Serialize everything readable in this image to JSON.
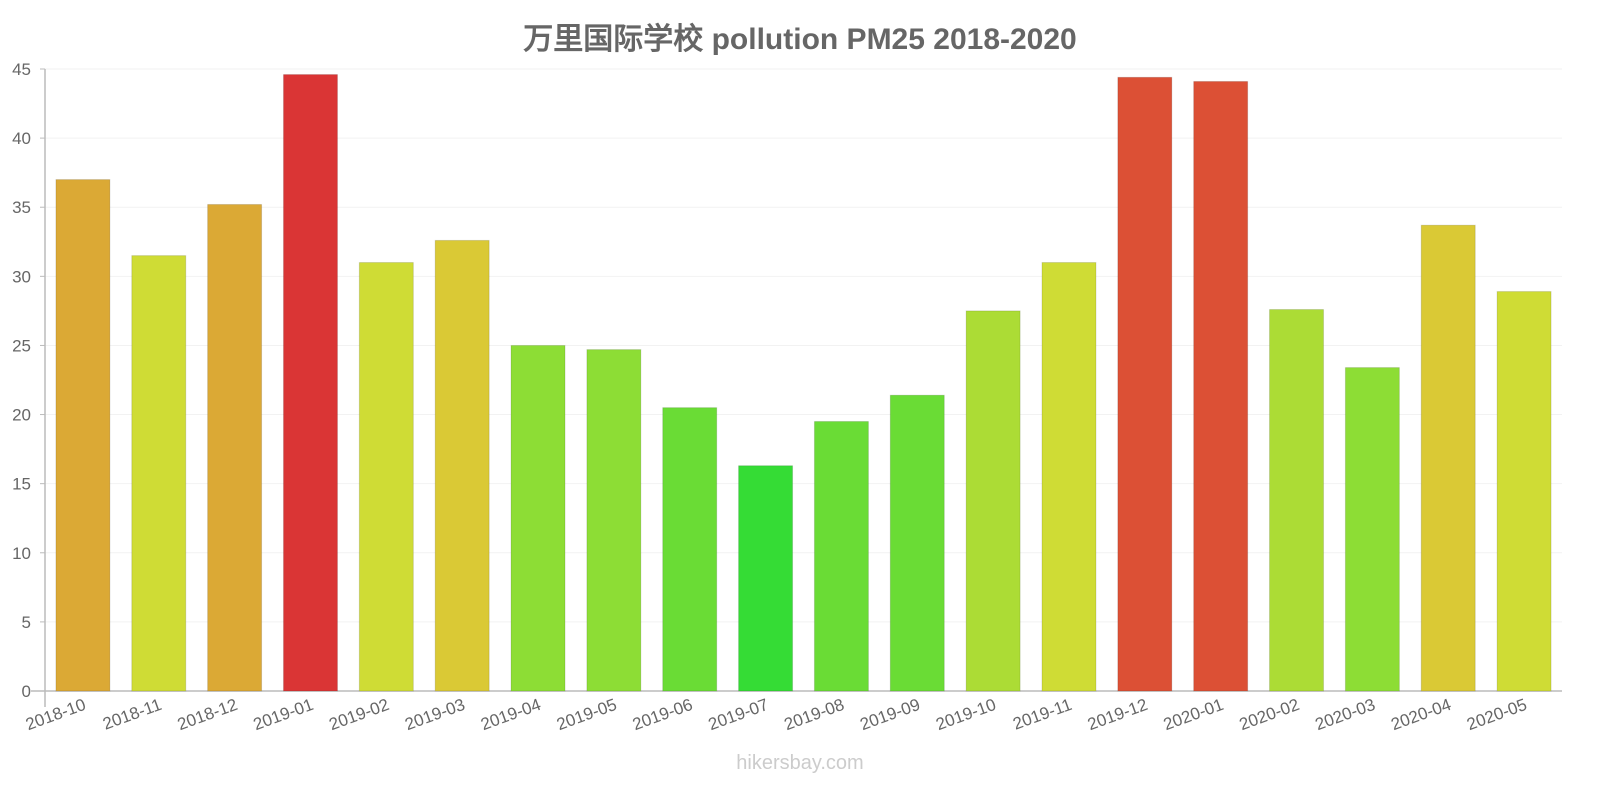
{
  "chart_data": {
    "type": "bar",
    "title": "万里国际学校 pollution PM25 2018-2020",
    "xlabel": "",
    "ylabel": "",
    "ylim": [
      0,
      45
    ],
    "yticks": [
      0,
      5,
      10,
      15,
      20,
      25,
      30,
      35,
      40,
      45
    ],
    "grid": true,
    "legend": null,
    "categories": [
      "2018-10",
      "2018-11",
      "2018-12",
      "2019-01",
      "2019-02",
      "2019-03",
      "2019-04",
      "2019-05",
      "2019-06",
      "2019-07",
      "2019-08",
      "2019-09",
      "2019-10",
      "2019-11",
      "2019-12",
      "2020-01",
      "2020-02",
      "2020-03",
      "2020-04",
      "2020-05"
    ],
    "values": [
      37.0,
      31.5,
      35.2,
      44.6,
      31.0,
      32.6,
      25.0,
      24.7,
      20.5,
      16.3,
      19.5,
      21.4,
      27.5,
      31.0,
      44.4,
      44.1,
      27.6,
      23.4,
      33.7,
      28.9
    ],
    "colors": [
      "#dba935",
      "#cfdc35",
      "#dba935",
      "#da3535",
      "#cfdc35",
      "#dac935",
      "#8ddd35",
      "#8ddd35",
      "#6adc35",
      "#35dc35",
      "#6adc35",
      "#6adc35",
      "#acdc35",
      "#cfdc35",
      "#dc5035",
      "#dc5035",
      "#acdc35",
      "#8ddd35",
      "#dac935",
      "#cfdc35"
    ]
  },
  "watermark": "hikersbay.com"
}
